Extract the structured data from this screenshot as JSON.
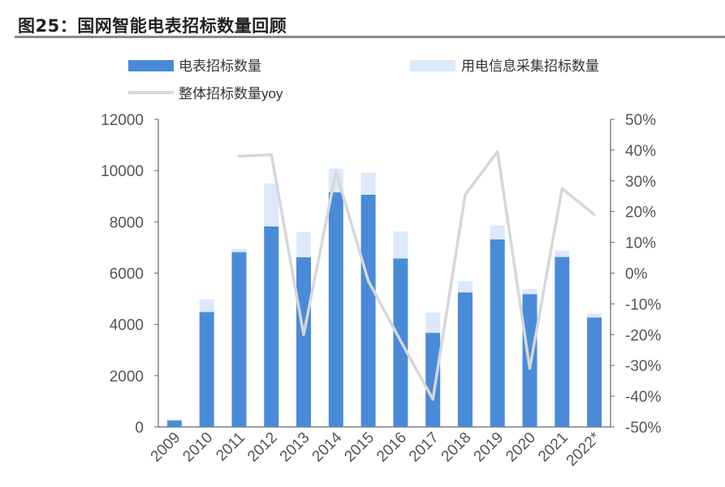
{
  "figure": {
    "title": "图25：国网智能电表招标数量回顾"
  },
  "colors": {
    "meter": "#4a8bd9",
    "collector": "#dce9fa",
    "yoy": "#d7d7d7",
    "axis": "#555555",
    "title": "#222222"
  },
  "chart_data": {
    "type": "bar",
    "stacked": true,
    "categories": [
      "2009",
      "2010",
      "2011",
      "2012",
      "2013",
      "2014",
      "2015",
      "2016",
      "2017",
      "2018",
      "2019",
      "2020",
      "2021",
      "2022*"
    ],
    "series": [
      {
        "name": "电表招标数量",
        "kind": "bar",
        "axis": "left",
        "values": [
          250,
          4480,
          6820,
          7820,
          6620,
          9150,
          9060,
          6570,
          3670,
          5250,
          7320,
          5180,
          6630,
          4270
        ]
      },
      {
        "name": "用电信息采集招标数量",
        "kind": "bar",
        "axis": "left",
        "values": [
          60,
          500,
          130,
          1680,
          980,
          930,
          860,
          1050,
          790,
          430,
          540,
          200,
          250,
          160
        ]
      },
      {
        "name": "整体招标数量yoy",
        "kind": "line",
        "axis": "right",
        "unit": "%",
        "values": [
          null,
          null,
          38,
          38.5,
          -20,
          33,
          -2.5,
          -22,
          -41,
          25.5,
          39.5,
          -31,
          27.5,
          19
        ]
      }
    ],
    "y_left": {
      "min": 0,
      "max": 12000,
      "ticks": [
        "0",
        "2000",
        "4000",
        "6000",
        "8000",
        "10000",
        "12000"
      ]
    },
    "y_right": {
      "min": -50,
      "max": 50,
      "ticks": [
        "-50%",
        "-40%",
        "-30%",
        "-20%",
        "-10%",
        "0%",
        "10%",
        "20%",
        "30%",
        "40%",
        "50%"
      ]
    },
    "grid": false,
    "legend_position": "top"
  }
}
